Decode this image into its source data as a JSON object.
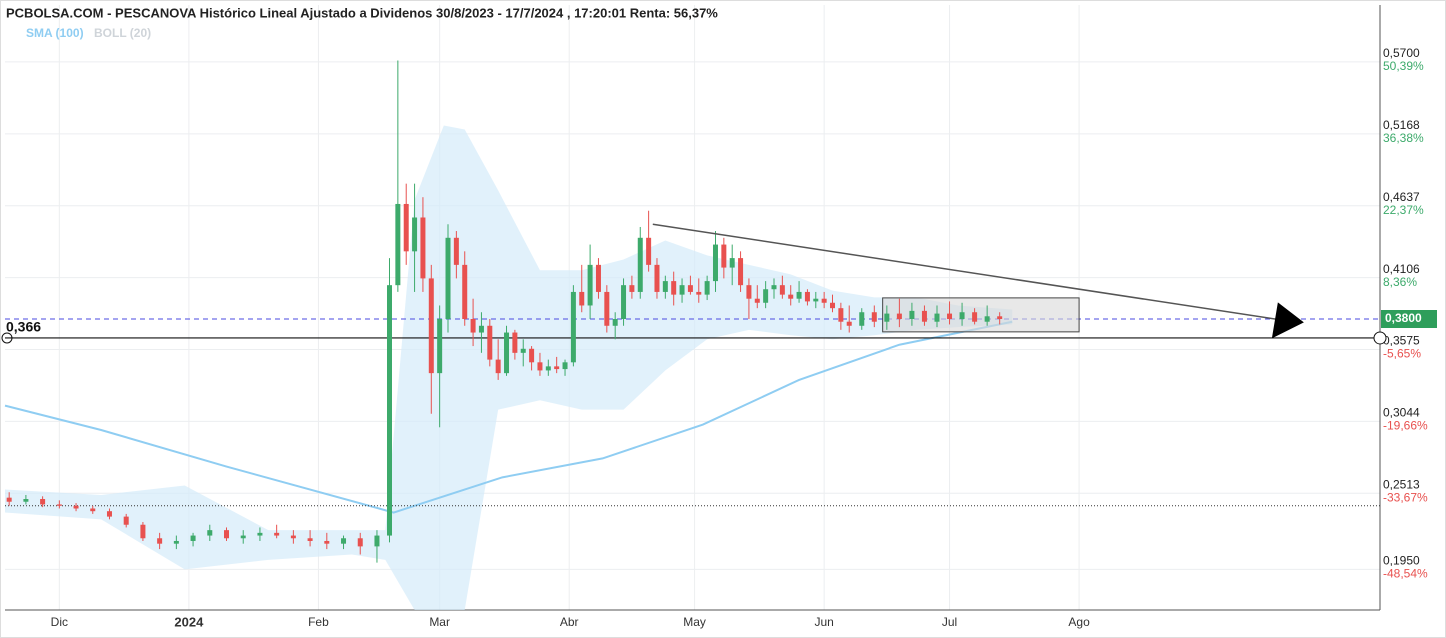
{
  "chart_data": {
    "type": "candlestick",
    "title": "PCBOLSA.COM - PESCANOVA Histórico Lineal Ajustado a Dividenos 30/8/2023 - 17/7/2024 , 17:20:01 Renta: 56,37%",
    "legend": [
      {
        "name": "SMA (100)",
        "color": "#8fcdf2"
      },
      {
        "name": "BOLL (20)",
        "color": "#cfd4d9"
      }
    ],
    "xlim": [
      -13,
      316
    ],
    "ylim": [
      0.165,
      0.612
    ],
    "xticks": [
      {
        "value": 0,
        "label": "Dic"
      },
      {
        "value": 31,
        "label": "2024"
      },
      {
        "value": 62,
        "label": "Feb"
      },
      {
        "value": 91,
        "label": "Mar"
      },
      {
        "value": 122,
        "label": "Abr"
      },
      {
        "value": 152,
        "label": "May"
      },
      {
        "value": 183,
        "label": "Jun"
      },
      {
        "value": 213,
        "label": "Jul"
      },
      {
        "value": 244,
        "label": "Ago"
      }
    ],
    "yticks": [
      {
        "value": 0.57,
        "label": "0,5700",
        "pct": "50,39%"
      },
      {
        "value": 0.5168,
        "label": "0,5168",
        "pct": "36,38%"
      },
      {
        "value": 0.4637,
        "label": "0,4637",
        "pct": "22,37%"
      },
      {
        "value": 0.4106,
        "label": "0,4106",
        "pct": "8,36%"
      },
      {
        "value": 0.3575,
        "label": "0,3575",
        "pct": "-5,65%"
      },
      {
        "value": 0.3044,
        "label": "0,3044",
        "pct": "-19,66%"
      },
      {
        "value": 0.2513,
        "label": "0,2513",
        "pct": "-33,67%"
      },
      {
        "value": 0.195,
        "label": "0,1950",
        "pct": "-48,54%"
      }
    ],
    "up_color": "#3daa6b",
    "down_color": "#e8514f",
    "x": [
      -12,
      -8,
      -4,
      0,
      4,
      8,
      12,
      16,
      20,
      24,
      28,
      32,
      36,
      40,
      44,
      48,
      52,
      56,
      60,
      64,
      68,
      72,
      76,
      79,
      81,
      83,
      85,
      87,
      89,
      91,
      93,
      95,
      97,
      99,
      101,
      103,
      105,
      107,
      109,
      111,
      113,
      115,
      117,
      119,
      121,
      123,
      125,
      127,
      129,
      131,
      133,
      135,
      137,
      139,
      141,
      143,
      145,
      147,
      149,
      151,
      153,
      155,
      157,
      159,
      161,
      163,
      165,
      167,
      169,
      171,
      173,
      175,
      177,
      179,
      181,
      183,
      185,
      187,
      189,
      192,
      195,
      198,
      201,
      204,
      207,
      210,
      213,
      216,
      219,
      222,
      225
    ],
    "open": [
      0.248,
      0.245,
      0.247,
      0.243,
      0.242,
      0.24,
      0.238,
      0.234,
      0.228,
      0.218,
      0.214,
      0.216,
      0.22,
      0.224,
      0.218,
      0.22,
      0.222,
      0.22,
      0.218,
      0.216,
      0.214,
      0.218,
      0.212,
      0.22,
      0.405,
      0.465,
      0.43,
      0.455,
      0.41,
      0.34,
      0.38,
      0.44,
      0.42,
      0.38,
      0.37,
      0.375,
      0.35,
      0.34,
      0.37,
      0.355,
      0.358,
      0.348,
      0.342,
      0.345,
      0.343,
      0.348,
      0.4,
      0.39,
      0.42,
      0.4,
      0.375,
      0.38,
      0.405,
      0.4,
      0.44,
      0.42,
      0.4,
      0.408,
      0.398,
      0.405,
      0.4,
      0.398,
      0.408,
      0.435,
      0.418,
      0.425,
      0.405,
      0.395,
      0.392,
      0.402,
      0.405,
      0.398,
      0.395,
      0.4,
      0.393,
      0.395,
      0.392,
      0.388,
      0.378,
      0.375,
      0.385,
      0.378,
      0.384,
      0.38,
      0.386,
      0.378,
      0.384,
      0.38,
      0.385,
      0.378,
      0.382
    ],
    "high": [
      0.252,
      0.25,
      0.249,
      0.246,
      0.244,
      0.242,
      0.24,
      0.236,
      0.23,
      0.222,
      0.22,
      0.222,
      0.228,
      0.226,
      0.224,
      0.226,
      0.228,
      0.224,
      0.224,
      0.222,
      0.22,
      0.222,
      0.224,
      0.425,
      0.571,
      0.48,
      0.48,
      0.47,
      0.42,
      0.39,
      0.45,
      0.445,
      0.43,
      0.395,
      0.385,
      0.38,
      0.365,
      0.375,
      0.372,
      0.365,
      0.36,
      0.355,
      0.35,
      0.352,
      0.35,
      0.405,
      0.42,
      0.435,
      0.425,
      0.405,
      0.385,
      0.41,
      0.412,
      0.448,
      0.46,
      0.425,
      0.412,
      0.415,
      0.41,
      0.412,
      0.41,
      0.412,
      0.445,
      0.44,
      0.435,
      0.43,
      0.41,
      0.405,
      0.408,
      0.41,
      0.412,
      0.405,
      0.408,
      0.402,
      0.4,
      0.4,
      0.398,
      0.392,
      0.39,
      0.388,
      0.39,
      0.39,
      0.395,
      0.392,
      0.39,
      0.39,
      0.393,
      0.392,
      0.388,
      0.39,
      0.385
    ],
    "low": [
      0.242,
      0.243,
      0.241,
      0.24,
      0.238,
      0.236,
      0.232,
      0.226,
      0.216,
      0.21,
      0.21,
      0.212,
      0.216,
      0.216,
      0.214,
      0.216,
      0.218,
      0.214,
      0.212,
      0.21,
      0.21,
      0.206,
      0.2,
      0.215,
      0.4,
      0.42,
      0.4,
      0.4,
      0.31,
      0.3,
      0.37,
      0.41,
      0.375,
      0.36,
      0.355,
      0.345,
      0.335,
      0.338,
      0.35,
      0.345,
      0.342,
      0.338,
      0.338,
      0.34,
      0.338,
      0.345,
      0.385,
      0.38,
      0.395,
      0.37,
      0.365,
      0.375,
      0.395,
      0.395,
      0.415,
      0.395,
      0.395,
      0.39,
      0.392,
      0.398,
      0.392,
      0.394,
      0.4,
      0.41,
      0.405,
      0.4,
      0.38,
      0.388,
      0.388,
      0.395,
      0.395,
      0.39,
      0.392,
      0.39,
      0.388,
      0.388,
      0.385,
      0.372,
      0.37,
      0.372,
      0.374,
      0.372,
      0.374,
      0.375,
      0.375,
      0.374,
      0.376,
      0.375,
      0.376,
      0.375,
      0.376
    ],
    "close": [
      0.245,
      0.247,
      0.243,
      0.242,
      0.24,
      0.238,
      0.234,
      0.228,
      0.218,
      0.214,
      0.216,
      0.22,
      0.224,
      0.218,
      0.22,
      0.222,
      0.22,
      0.218,
      0.216,
      0.214,
      0.218,
      0.212,
      0.22,
      0.405,
      0.465,
      0.43,
      0.455,
      0.41,
      0.34,
      0.38,
      0.44,
      0.42,
      0.38,
      0.37,
      0.375,
      0.35,
      0.34,
      0.37,
      0.355,
      0.358,
      0.348,
      0.342,
      0.345,
      0.343,
      0.348,
      0.4,
      0.39,
      0.42,
      0.4,
      0.375,
      0.38,
      0.405,
      0.4,
      0.44,
      0.42,
      0.4,
      0.408,
      0.398,
      0.405,
      0.4,
      0.398,
      0.408,
      0.435,
      0.418,
      0.425,
      0.405,
      0.395,
      0.392,
      0.402,
      0.405,
      0.398,
      0.395,
      0.4,
      0.393,
      0.395,
      0.392,
      0.388,
      0.378,
      0.375,
      0.385,
      0.378,
      0.384,
      0.38,
      0.386,
      0.378,
      0.384,
      0.38,
      0.385,
      0.378,
      0.382,
      0.38
    ],
    "sma": {
      "x": [
        -13,
        10,
        40,
        80,
        106,
        130,
        154,
        177,
        201,
        228
      ],
      "values": [
        0.316,
        0.298,
        0.271,
        0.237,
        0.263,
        0.277,
        0.302,
        0.335,
        0.361,
        0.378
      ]
    },
    "boll": {
      "x": [
        -13,
        10,
        30,
        50,
        70,
        78,
        85,
        92,
        97,
        105,
        115,
        125,
        135,
        145,
        155,
        165,
        175,
        185,
        195,
        205,
        215,
        228
      ],
      "upper": [
        0.254,
        0.25,
        0.257,
        0.224,
        0.224,
        0.224,
        0.468,
        0.523,
        0.52,
        0.475,
        0.416,
        0.416,
        0.424,
        0.438,
        0.427,
        0.42,
        0.413,
        0.401,
        0.396,
        0.396,
        0.39,
        0.387
      ],
      "lower": [
        0.237,
        0.232,
        0.195,
        0.202,
        0.206,
        0.202,
        0.165,
        0.165,
        0.165,
        0.313,
        0.32,
        0.313,
        0.313,
        0.342,
        0.365,
        0.372,
        0.368,
        0.365,
        0.368,
        0.372,
        0.374,
        0.376
      ]
    },
    "last_price": {
      "value": 0.38,
      "label": "0,3800"
    },
    "support": {
      "value": 0.366,
      "label": "0,366"
    },
    "dotted_level": 0.242,
    "trendline": {
      "x": [
        142,
        293
      ],
      "values": [
        0.45,
        0.379
      ]
    },
    "range_box": {
      "x": [
        197,
        244
      ],
      "values": [
        0.3705,
        0.3956
      ]
    }
  }
}
